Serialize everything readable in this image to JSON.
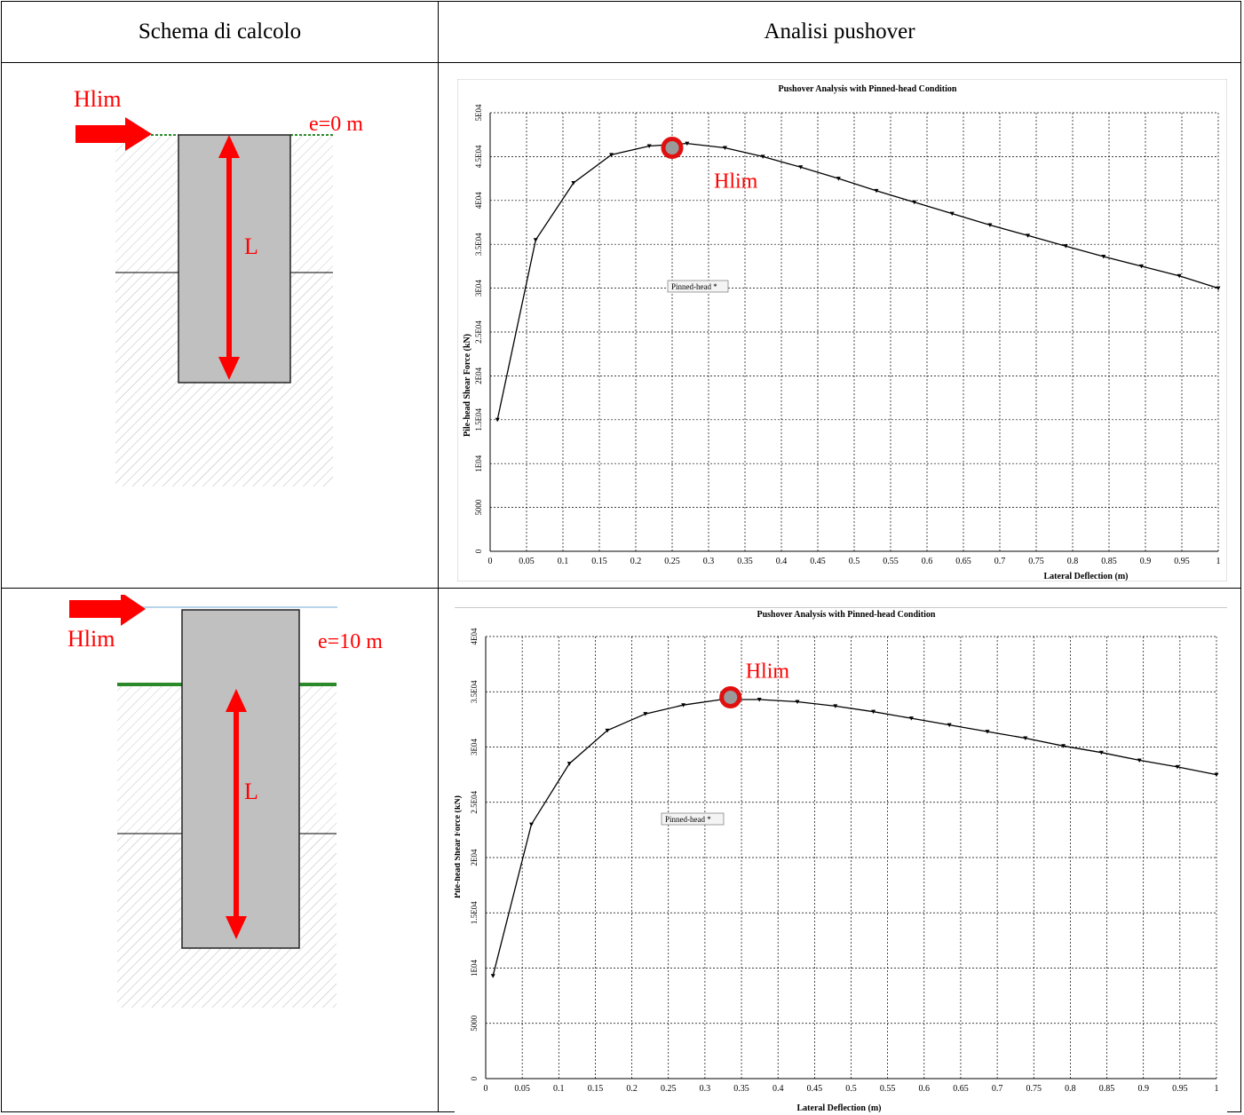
{
  "table": {
    "headers": [
      "Schema di calcolo",
      "Analisi pushover"
    ]
  },
  "schemes": [
    {
      "force_label": "Hlim",
      "eccentricity_label": "e=0 m",
      "length_label": "L"
    },
    {
      "force_label": "Hlim",
      "eccentricity_label": "e=10 m",
      "length_label": "L"
    }
  ],
  "colors": {
    "annotation": "#ff0000",
    "pile": "#c0c0c0",
    "ground": "#2a8a2a",
    "curve": "#000000"
  },
  "chart_data": [
    {
      "type": "line",
      "title": "Pushover Analysis with Pinned-head Condition",
      "xlabel": "Lateral Deflection (m)",
      "ylabel": "Pile-head Shear Force  (kN)",
      "xlim": [
        0,
        1
      ],
      "ylim": [
        0,
        50000
      ],
      "x_ticks": [
        "0",
        "0.05",
        "0.1",
        "0.15",
        "0.2",
        "0.25",
        "0.3",
        "0.35",
        "0.4",
        "0.45",
        "0.5",
        "0.55",
        "0.6",
        "0.65",
        "0.7",
        "0.75",
        "0.8",
        "0.85",
        "0.9",
        "0.95",
        "1"
      ],
      "y_ticks": [
        "0",
        "5000",
        "1E04",
        "1.5E04",
        "2E04",
        "2.5E04",
        "3E04",
        "3.5E04",
        "4E04",
        "4.5E04",
        "5E04"
      ],
      "y_tick_values": [
        0,
        5000,
        10000,
        15000,
        20000,
        25000,
        30000,
        35000,
        40000,
        45000,
        50000
      ],
      "grid": true,
      "legend_label": "Pinned-head *",
      "annotation": "Hlim",
      "hlim_point": {
        "x": 0.25,
        "y": 46000
      },
      "series": [
        {
          "name": "Pinned-head *",
          "x": [
            0.01,
            0.0625,
            0.1145,
            0.1665,
            0.2185,
            0.2705,
            0.3225,
            0.3745,
            0.4265,
            0.4785,
            0.5305,
            0.5825,
            0.6345,
            0.6865,
            0.7385,
            0.7905,
            0.8425,
            0.8945,
            0.9465,
            1.0
          ],
          "y": [
            15000,
            35500,
            42000,
            45200,
            46200,
            46500,
            46000,
            45000,
            43800,
            42500,
            41100,
            39800,
            38500,
            37200,
            36000,
            34800,
            33600,
            32500,
            31400,
            30000
          ]
        }
      ]
    },
    {
      "type": "line",
      "title": "Pushover Analysis with Pinned-head Condition",
      "xlabel": "Lateral Deflection (m)",
      "ylabel": "Pile-head Shear Force  (kN)",
      "xlim": [
        0,
        1
      ],
      "ylim": [
        0,
        40000
      ],
      "x_ticks": [
        "0",
        "0.05",
        "0.1",
        "0.15",
        "0.2",
        "0.25",
        "0.3",
        "0.35",
        "0.4",
        "0.45",
        "0.5",
        "0.55",
        "0.6",
        "0.65",
        "0.7",
        "0.75",
        "0.8",
        "0.85",
        "0.9",
        "0.95",
        "1"
      ],
      "y_ticks": [
        "0",
        "5000",
        "1E04",
        "1.5E04",
        "2E04",
        "2.5E04",
        "3E04",
        "3.5E04",
        "4E04"
      ],
      "y_tick_values": [
        0,
        5000,
        10000,
        15000,
        20000,
        25000,
        30000,
        35000,
        40000
      ],
      "grid": true,
      "legend_label": "Pinned-head *",
      "annotation": "Hlim",
      "hlim_point": {
        "x": 0.335,
        "y": 34500
      },
      "series": [
        {
          "name": "Pinned-head *",
          "x": [
            0.01,
            0.0625,
            0.1145,
            0.1665,
            0.2185,
            0.2705,
            0.3225,
            0.3745,
            0.4265,
            0.4785,
            0.5305,
            0.5825,
            0.6345,
            0.6865,
            0.7385,
            0.7905,
            0.8425,
            0.8945,
            0.9465,
            1.0
          ],
          "y": [
            9300,
            23000,
            28500,
            31500,
            33000,
            33800,
            34300,
            34300,
            34100,
            33700,
            33200,
            32600,
            32000,
            31400,
            30800,
            30100,
            29500,
            28800,
            28200,
            27500
          ]
        }
      ]
    }
  ]
}
